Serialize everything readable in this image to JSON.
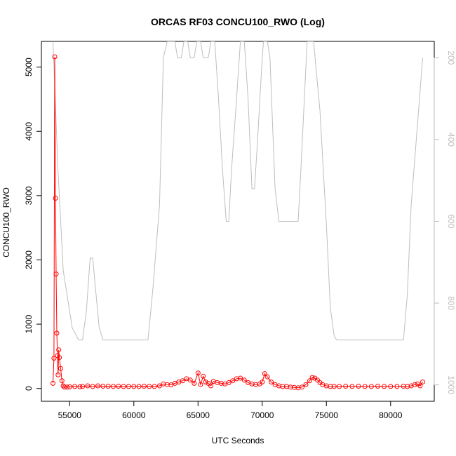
{
  "chart_data": {
    "type": "line",
    "title": "ORCAS RF03 CONCU100_RWO (Log)",
    "xlabel": "UTC Seconds",
    "ylabel": "CONCU100_RWO",
    "xlim": [
      52800,
      83400
    ],
    "ylim": [
      -200,
      5400
    ],
    "y2lim": [
      1040,
      160
    ],
    "x_ticks": [
      55000,
      60000,
      65000,
      70000,
      75000,
      80000
    ],
    "y_ticks": [
      0,
      1000,
      2000,
      3000,
      4000,
      5000
    ],
    "y2_ticks": [
      200,
      400,
      600,
      800,
      1000
    ],
    "grid": false,
    "colors": {
      "primary": "#ff0000",
      "secondary": "#bebebe",
      "axes": "#000000"
    },
    "series": [
      {
        "axis": "left",
        "style": "line+points",
        "x": [
          53700,
          53780,
          53840,
          53900,
          53950,
          54000,
          54050,
          54100,
          54150,
          54200,
          54300,
          54400,
          54500,
          54600,
          54800,
          55000,
          55400,
          55800,
          56000,
          56400,
          56800,
          57200,
          57600,
          58000,
          58400,
          58800,
          59200,
          59600,
          60000,
          60400,
          60800,
          61200,
          61600,
          62000,
          62300,
          62600,
          62900,
          63200,
          63500,
          63800,
          64100,
          64400,
          64700,
          65000,
          65200,
          65400,
          65600,
          65800,
          66000,
          66200,
          66500,
          66800,
          67100,
          67400,
          67700,
          68000,
          68300,
          68600,
          68900,
          69200,
          69500,
          69800,
          70000,
          70200,
          70400,
          70700,
          71000,
          71300,
          71600,
          71900,
          72200,
          72500,
          72800,
          73100,
          73400,
          73700,
          73900,
          74100,
          74300,
          74500,
          74700,
          75000,
          75300,
          75600,
          76000,
          76500,
          77000,
          77500,
          78000,
          78500,
          79000,
          79500,
          80000,
          80500,
          81000,
          81300,
          81600,
          81900,
          82100,
          82300,
          82500
        ],
        "y": [
          80,
          470,
          5160,
          2960,
          1780,
          860,
          510,
          210,
          600,
          480,
          310,
          120,
          40,
          20,
          20,
          25,
          30,
          25,
          30,
          40,
          30,
          40,
          35,
          35,
          30,
          35,
          30,
          30,
          30,
          30,
          35,
          30,
          30,
          40,
          70,
          60,
          55,
          80,
          100,
          120,
          150,
          130,
          80,
          240,
          60,
          190,
          100,
          80,
          40,
          110,
          90,
          80,
          70,
          90,
          120,
          150,
          160,
          130,
          90,
          70,
          60,
          70,
          100,
          230,
          180,
          100,
          60,
          40,
          30,
          30,
          20,
          15,
          10,
          20,
          60,
          120,
          170,
          160,
          130,
          90,
          60,
          40,
          30,
          30,
          30,
          35,
          30,
          35,
          30,
          30,
          35,
          30,
          30,
          30,
          35,
          30,
          40,
          60,
          70,
          40,
          100
        ]
      },
      {
        "axis": "right",
        "style": "line",
        "x": [
          53700,
          54100,
          54500,
          54800,
          55200,
          55700,
          56000,
          56300,
          56600,
          56800,
          57000,
          57300,
          57600,
          57800,
          58300,
          59000,
          60000,
          61000,
          61100,
          61500,
          62000,
          62300,
          62600,
          62900,
          63200,
          63400,
          63700,
          63900,
          64200,
          64400,
          64700,
          64900,
          65200,
          65400,
          65800,
          66000,
          66300,
          66600,
          66900,
          67200,
          67400,
          67600,
          68000,
          68300,
          68600,
          68900,
          69200,
          69400,
          69600,
          70000,
          70100,
          70400,
          70600,
          71000,
          71300,
          71500,
          72000,
          72500,
          72800,
          73000,
          73500,
          73800,
          74000,
          74500,
          75000,
          75300,
          75600,
          75800,
          76500,
          77500,
          78500,
          79500,
          80500,
          81000,
          81300,
          81600,
          82000,
          82500
        ],
        "y": [
          160,
          480,
          720,
          780,
          860,
          890,
          890,
          820,
          690,
          690,
          760,
          860,
          890,
          890,
          890,
          890,
          890,
          890,
          890,
          760,
          560,
          200,
          160,
          160,
          160,
          200,
          200,
          160,
          160,
          200,
          200,
          160,
          160,
          200,
          200,
          160,
          160,
          300,
          470,
          600,
          600,
          480,
          300,
          160,
          160,
          300,
          520,
          520,
          420,
          200,
          160,
          160,
          200,
          520,
          600,
          600,
          600,
          600,
          600,
          480,
          160,
          160,
          160,
          330,
          610,
          810,
          880,
          890,
          890,
          890,
          890,
          890,
          890,
          890,
          780,
          560,
          400,
          200
        ]
      }
    ]
  }
}
